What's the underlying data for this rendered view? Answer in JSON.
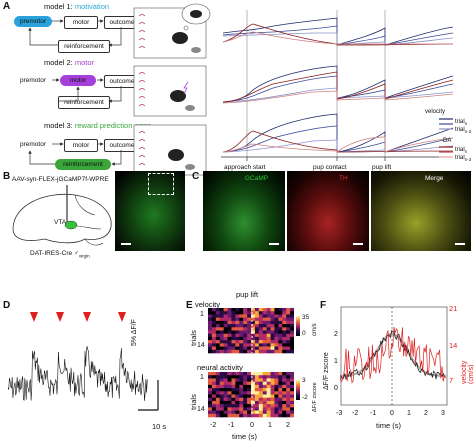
{
  "panels": {
    "A": "A",
    "B": "B",
    "C": "C",
    "D": "D",
    "E": "E",
    "F": "F"
  },
  "colors": {
    "motivation": "#2aa3dc",
    "motor": "#a43fd9",
    "reward": "#3aa63a",
    "velocity_dark": "#1e2a6b",
    "da_dark": "#8a1c1c",
    "gcamp": "#35c23a",
    "th": "#d92a2a",
    "merge": "#b3b62a",
    "arrow_red": "#e11e1e"
  },
  "panel_a": {
    "models": [
      {
        "prefix": "model 1:",
        "name": "motivation"
      },
      {
        "prefix": "model 2:",
        "name": "motor"
      },
      {
        "prefix": "model 3:",
        "name": "reward prediction error"
      }
    ],
    "nodes": {
      "premotor": "premotor",
      "motor": "motor",
      "outcome": "outcome",
      "reinforcement": "reinforcement"
    },
    "events": [
      "approach start",
      "pup contact",
      "pup lift"
    ],
    "legend": {
      "velocity_title": "velocity",
      "da_title": "DA",
      "trial_a": "trial",
      "trial_a_sub": "n",
      "trial_b": "trial",
      "trial_b_sub": "n-3"
    }
  },
  "panel_b": {
    "construct": "AAV-syn-FLEX-jGCaMP7f-WPRE",
    "region": "VTA",
    "mouse_line": "DAT-IRES-Cre",
    "mouse_line_suffix": "♂",
    "mouse_line_sup": "virgin"
  },
  "panel_c": {
    "labels": [
      "GCaMP",
      "TH",
      "Merge"
    ]
  },
  "panel_d": {
    "scale_y": "5% ΔF/F",
    "scale_x": "10 s"
  },
  "panel_e": {
    "title": "pup lift",
    "top_label": "velocity",
    "bottom_label": "neural activity",
    "ylabel": "trials",
    "yticks": [
      "1",
      "14"
    ],
    "xticks": [
      "-2",
      "-1",
      "0",
      "1",
      "2"
    ],
    "xlabel": "time (s)",
    "cbar_top": {
      "max": "35",
      "min": "0",
      "unit": "cm/s"
    },
    "cbar_bottom": {
      "max": "3",
      "min": "-2",
      "unit": "ΔF/F zscore"
    }
  },
  "panel_f": {
    "ylabel_left": "ΔF/F zscore",
    "ylabel_right": "velocity (cm/s)",
    "left_ticks": [
      "0",
      "1",
      "2"
    ],
    "right_ticks": [
      "21",
      "14",
      "7"
    ],
    "xticks": [
      "-3",
      "-2",
      "-1",
      "0",
      "1",
      "2",
      "3"
    ],
    "xlabel": "time (s)"
  }
}
